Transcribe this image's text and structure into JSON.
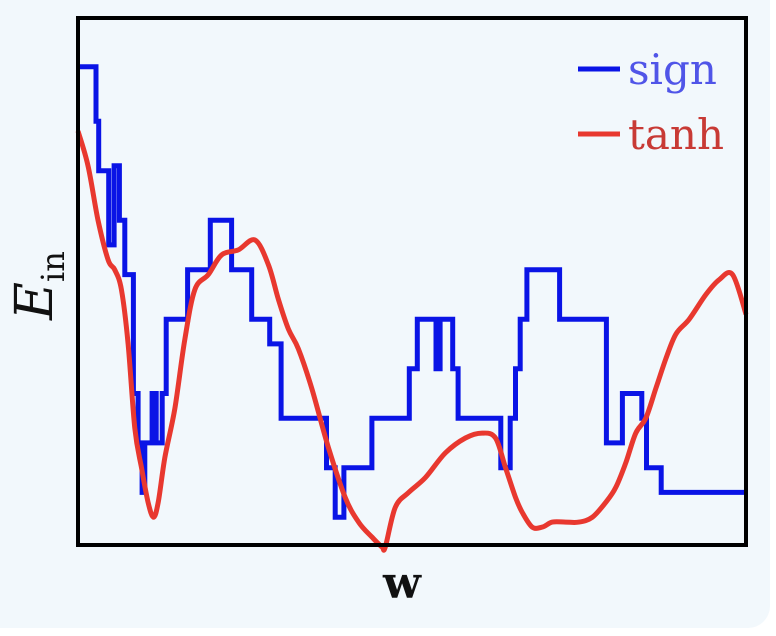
{
  "chart_data": {
    "type": "line",
    "xlabel": "w",
    "ylabel": "E",
    "ylabel_subscript": "in",
    "xlim": [
      0,
      100
    ],
    "ylim": [
      0,
      100
    ],
    "grid": false,
    "legend_position": "top-right",
    "ticks": "none",
    "series": [
      {
        "name": "sign",
        "color": "#0a14e6",
        "step": true,
        "x": [
          0,
          2.7,
          3.1,
          4.6,
          5.4,
          6.2,
          7.0,
          8.3,
          9.0,
          9.6,
          10.0,
          11.1,
          11.7,
          12.6,
          13.2,
          16.4,
          17.8,
          19.8,
          23.0,
          26.0,
          28.7,
          30.4,
          34.0,
          37.2,
          38.5,
          39.8,
          44.0,
          46.0,
          49.6,
          50.8,
          53.6,
          54.2,
          56.1,
          56.9,
          60.0,
          63.3,
          64.7,
          65.5,
          66.2,
          67.2,
          70.2,
          72.1,
          76.1,
          79.1,
          81.5,
          83.3,
          84.4,
          85.1,
          87.3,
          89.8,
          93.0,
          98.1,
          100
        ],
        "y": [
          95,
          84,
          74,
          59,
          75,
          64,
          53,
          29,
          19,
          9,
          19,
          29,
          19,
          29,
          44,
          54,
          54,
          64,
          54,
          44,
          39,
          24,
          24,
          14,
          4,
          14,
          24,
          24,
          34,
          44,
          34,
          44,
          34,
          24,
          24,
          14,
          24,
          34,
          44,
          54,
          54,
          44,
          44,
          19,
          29,
          29,
          24,
          14,
          9,
          9,
          9,
          9,
          9
        ]
      },
      {
        "name": "tanh",
        "color": "#e8382f",
        "step": false,
        "x": [
          0,
          1.5,
          3.0,
          4.5,
          5.5,
          6.5,
          7.5,
          8.5,
          9.5,
          10.5,
          11.3,
          12.0,
          13.0,
          14.5,
          16.0,
          17.5,
          19.5,
          21.5,
          24.0,
          26.5,
          28.5,
          30.0,
          31.5,
          33.0,
          35.0,
          37.5,
          40.0,
          42.0,
          44.0,
          45.5,
          46.0,
          47.5,
          49.5,
          52.0,
          55.0,
          58.0,
          60.5,
          62.5,
          64.0,
          65.5,
          66.5,
          68.0,
          69.5,
          71.0,
          73.0,
          75.0,
          77.0,
          79.0,
          80.5,
          82.0,
          83.5,
          85.0,
          86.5,
          88.0,
          89.5,
          91.5,
          94.0,
          96.0,
          98.0,
          100
        ],
        "y": [
          82,
          75,
          64,
          56,
          54,
          50,
          39,
          22,
          14,
          7,
          4,
          7,
          16,
          26,
          40,
          50,
          53,
          57,
          58,
          60,
          55,
          48,
          42,
          38,
          30,
          18,
          8,
          3,
          0,
          -2,
          -2,
          6,
          9,
          12,
          17,
          20,
          21,
          20,
          14,
          8,
          5,
          2,
          2,
          3,
          3,
          3,
          4,
          7,
          10,
          15,
          21,
          24,
          30,
          36,
          41,
          44,
          49,
          52,
          53,
          45
        ]
      }
    ]
  }
}
